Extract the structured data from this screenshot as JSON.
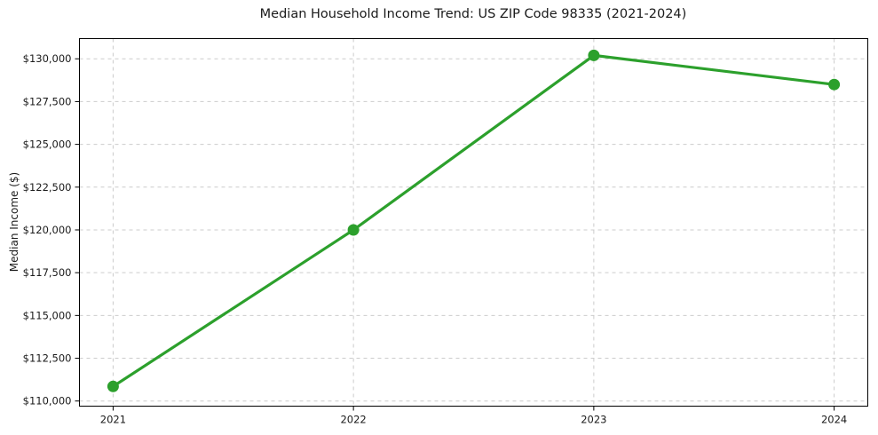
{
  "figure": {
    "background": "#ffffff",
    "frame_color": "#000000",
    "text_color": "#1a1a1a"
  },
  "chart_data": {
    "type": "line",
    "title": "Median Household Income Trend: US ZIP Code 98335 (2021-2024)",
    "xlabel": "",
    "ylabel": "Median Income ($)",
    "x": [
      2021,
      2022,
      2023,
      2024
    ],
    "x_tick_labels": [
      "2021",
      "2022",
      "2023",
      "2024"
    ],
    "series": [
      {
        "name": "Median Household Income",
        "color": "#2ca02c",
        "marker": "circle",
        "values": [
          110850,
          120000,
          130200,
          128500
        ]
      }
    ],
    "y_ticks": [
      110000,
      112500,
      115000,
      117500,
      120000,
      122500,
      125000,
      127500,
      130000
    ],
    "y_tick_labels": [
      "$110,000",
      "$112,500",
      "$115,000",
      "$117,500",
      "$120,000",
      "$122,500",
      "$125,000",
      "$127,500",
      "$130,000"
    ],
    "xlim": [
      2020.86,
      2024.14
    ],
    "ylim": [
      109700,
      131180
    ],
    "grid": true,
    "grid_color": "#cccccc",
    "grid_style": "dashed",
    "legend": "none"
  }
}
